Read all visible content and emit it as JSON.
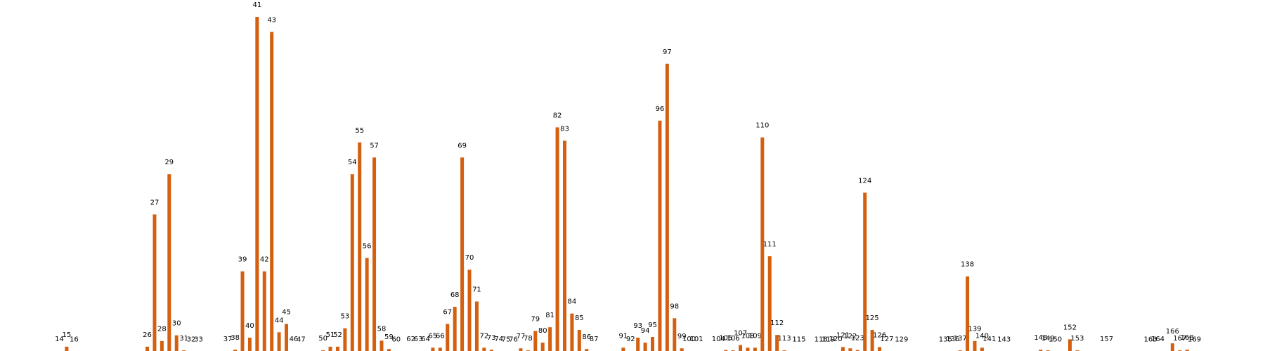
{
  "chart_data": {
    "type": "bar",
    "title": "",
    "xlabel": "",
    "ylabel": "",
    "grid": false,
    "legend": "none",
    "bar_color": "#d35f0f",
    "label_color": "#000000",
    "ylim": [
      0,
      100
    ],
    "categories": [
      "14",
      "15",
      "16",
      "26",
      "27",
      "28",
      "29",
      "30",
      "31",
      "32",
      "33",
      "37",
      "38",
      "39",
      "40",
      "41",
      "42",
      "43",
      "44",
      "45",
      "46",
      "47",
      "50",
      "51",
      "52",
      "53",
      "54",
      "55",
      "56",
      "57",
      "58",
      "59",
      "60",
      "62",
      "63",
      "64",
      "65",
      "66",
      "67",
      "68",
      "69",
      "70",
      "71",
      "72",
      "73",
      "74",
      "75",
      "76",
      "77",
      "78",
      "79",
      "80",
      "81",
      "82",
      "83",
      "84",
      "85",
      "86",
      "87",
      "91",
      "92",
      "93",
      "94",
      "95",
      "96",
      "97",
      "98",
      "99",
      "100",
      "101",
      "104",
      "105",
      "106",
      "107",
      "108",
      "109",
      "110",
      "111",
      "112",
      "113",
      "115",
      "118",
      "119",
      "120",
      "121",
      "122",
      "123",
      "124",
      "125",
      "126",
      "127",
      "129",
      "135",
      "136",
      "137",
      "138",
      "139",
      "140",
      "141",
      "143",
      "148",
      "149",
      "150",
      "152",
      "153",
      "157",
      "163",
      "164",
      "166",
      "167",
      "168",
      "169"
    ],
    "values": [
      0.2,
      1.5,
      0.1,
      1.5,
      41,
      3.2,
      53,
      4.9,
      0.4,
      0.1,
      0.1,
      0.2,
      0.6,
      24,
      4.2,
      100,
      24,
      95.5,
      5.8,
      8.3,
      0.2,
      0.1,
      0.4,
      1.5,
      1.5,
      7,
      53,
      62.5,
      28,
      58,
      3.3,
      0.8,
      0.1,
      0.2,
      0.2,
      0.2,
      1.2,
      1.2,
      8.3,
      13.4,
      58,
      24.5,
      15,
      1.2,
      0.6,
      0.2,
      0.1,
      0.1,
      1,
      0.4,
      6.2,
      2.7,
      7.3,
      67,
      63,
      11.4,
      6.5,
      0.8,
      0.2,
      1.2,
      0.2,
      4.2,
      2.7,
      4.4,
      69,
      86,
      10,
      1,
      0.2,
      0.2,
      0.2,
      0.5,
      0.4,
      2,
      1.2,
      1.2,
      64,
      28.5,
      5,
      0.4,
      0.1,
      0.1,
      0.1,
      0.2,
      1.4,
      1,
      0.5,
      47.5,
      6.5,
      1.4,
      0.2,
      0.1,
      0.1,
      0.2,
      0.4,
      22.5,
      3.2,
      1.2,
      0.2,
      0.1,
      0.6,
      0.4,
      0.1,
      3.7,
      0.4,
      0.2,
      0.1,
      0.2,
      2.5,
      0.4,
      0.6,
      0.1
    ]
  }
}
